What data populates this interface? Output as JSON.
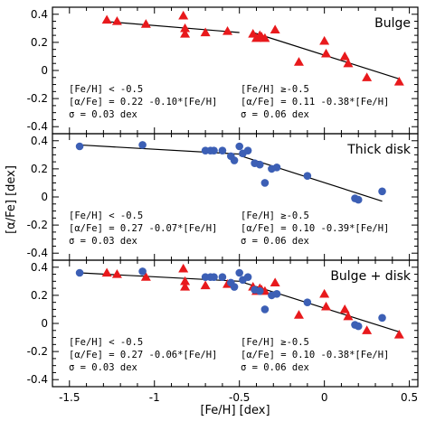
{
  "chart_data": [
    {
      "type": "scatter",
      "title": "Bulge",
      "xlim": [
        -1.6,
        0.55
      ],
      "ylim": [
        -0.45,
        0.45
      ],
      "yticks": [
        "0.4",
        "0.2",
        "0",
        "-0.2",
        "-0.4"
      ],
      "series": [
        {
          "marker": "triangle",
          "color": "#e8191c",
          "x": [
            -1.28,
            -1.22,
            -1.05,
            -0.83,
            -0.82,
            -0.82,
            -0.7,
            -0.57,
            -0.42,
            -0.4,
            -0.38,
            -0.37,
            -0.35,
            -0.29,
            -0.15,
            0,
            0.01,
            0.12,
            0.14,
            0.25,
            0.44
          ],
          "y": [
            0.36,
            0.35,
            0.33,
            0.39,
            0.3,
            0.26,
            0.27,
            0.28,
            0.26,
            0.23,
            0.25,
            0.24,
            0.23,
            0.29,
            0.06,
            0.21,
            0.12,
            0.1,
            0.05,
            -0.05,
            -0.08
          ]
        }
      ],
      "fits": [
        {
          "x": [
            -1.3,
            -0.5
          ],
          "y": [
            0.35,
            0.27
          ]
        },
        {
          "x": [
            -0.42,
            0.44
          ],
          "y": [
            0.27,
            -0.06
          ]
        }
      ],
      "annotations": [
        {
          "lines": [
            "[Fe/H] < -0.5",
            "[α/Fe] = 0.22 -0.10*[Fe/H]",
            "σ = 0.03 dex"
          ]
        },
        {
          "lines": [
            "[Fe/H] ≥-0.5",
            "[α/Fe] = 0.11 -0.38*[Fe/H]",
            "σ = 0.06 dex"
          ]
        }
      ]
    },
    {
      "type": "scatter",
      "title": "Thick disk",
      "xlim": [
        -1.6,
        0.55
      ],
      "ylim": [
        -0.45,
        0.45
      ],
      "yticks": [
        "0.4",
        "0.2",
        "0",
        "-0.2",
        "-0.4"
      ],
      "series": [
        {
          "marker": "circle",
          "color": "#3c5fb5",
          "x": [
            -1.44,
            -1.07,
            -0.7,
            -0.67,
            -0.65,
            -0.6,
            -0.55,
            -0.53,
            -0.5,
            -0.48,
            -0.45,
            -0.41,
            -0.38,
            -0.35,
            -0.31,
            -0.28,
            -0.1,
            0.18,
            0.2,
            0.34
          ],
          "y": [
            0.36,
            0.37,
            0.33,
            0.33,
            0.33,
            0.33,
            0.29,
            0.26,
            0.36,
            0.31,
            0.33,
            0.24,
            0.23,
            0.1,
            0.2,
            0.21,
            0.15,
            -0.01,
            -0.02,
            0.04
          ]
        }
      ],
      "fits": [
        {
          "x": [
            -1.44,
            -0.5
          ],
          "y": [
            0.37,
            0.305
          ]
        },
        {
          "x": [
            -0.5,
            0.34
          ],
          "y": [
            0.295,
            -0.03
          ]
        }
      ],
      "annotations": [
        {
          "lines": [
            "[Fe/H] < -0.5",
            "[α/Fe] = 0.27 -0.07*[Fe/H]",
            "σ = 0.03 dex"
          ]
        },
        {
          "lines": [
            "[Fe/H] ≥-0.5",
            "[α/Fe] = 0.10 -0.39*[Fe/H]",
            "σ = 0.06 dex"
          ]
        }
      ]
    },
    {
      "type": "scatter",
      "title": "Bulge + disk",
      "xlim": [
        -1.6,
        0.55
      ],
      "ylim": [
        -0.45,
        0.45
      ],
      "yticks": [
        "0.4",
        "0.2",
        "0",
        "-0.2",
        "-0.4"
      ],
      "xticks": [
        "-1.5",
        "-1",
        "-0.5",
        "0",
        "0.5"
      ],
      "xlabel": "[Fe/H] [dex]",
      "series": [
        {
          "marker": "triangle",
          "color": "#e8191c",
          "x": [
            -1.28,
            -1.22,
            -1.05,
            -0.83,
            -0.82,
            -0.82,
            -0.7,
            -0.57,
            -0.42,
            -0.4,
            -0.38,
            -0.37,
            -0.35,
            -0.29,
            -0.15,
            0,
            0.01,
            0.12,
            0.14,
            0.25,
            0.44
          ],
          "y": [
            0.36,
            0.35,
            0.33,
            0.39,
            0.3,
            0.26,
            0.27,
            0.28,
            0.26,
            0.23,
            0.25,
            0.24,
            0.23,
            0.29,
            0.06,
            0.21,
            0.12,
            0.1,
            0.05,
            -0.05,
            -0.08
          ]
        },
        {
          "marker": "circle",
          "color": "#3c5fb5",
          "x": [
            -1.44,
            -1.07,
            -0.7,
            -0.67,
            -0.65,
            -0.6,
            -0.55,
            -0.53,
            -0.5,
            -0.48,
            -0.45,
            -0.41,
            -0.38,
            -0.35,
            -0.31,
            -0.28,
            -0.1,
            0.18,
            0.2,
            0.34
          ],
          "y": [
            0.36,
            0.37,
            0.33,
            0.33,
            0.33,
            0.33,
            0.29,
            0.26,
            0.36,
            0.31,
            0.33,
            0.24,
            0.23,
            0.1,
            0.2,
            0.21,
            0.15,
            -0.01,
            -0.02,
            0.04
          ]
        }
      ],
      "fits": [
        {
          "x": [
            -1.44,
            -0.5
          ],
          "y": [
            0.36,
            0.3
          ]
        },
        {
          "x": [
            -0.5,
            0.44
          ],
          "y": [
            0.3,
            -0.06
          ]
        }
      ],
      "annotations": [
        {
          "lines": [
            "[Fe/H] < -0.5",
            "[α/Fe] = 0.27 -0.06*[Fe/H]",
            "σ = 0.03 dex"
          ]
        },
        {
          "lines": [
            "[Fe/H] ≥-0.5",
            "[α/Fe] = 0.10 -0.38*[Fe/H]",
            "σ = 0.06 dex"
          ]
        }
      ]
    }
  ],
  "ylabel": "[α/Fe] [dex]"
}
